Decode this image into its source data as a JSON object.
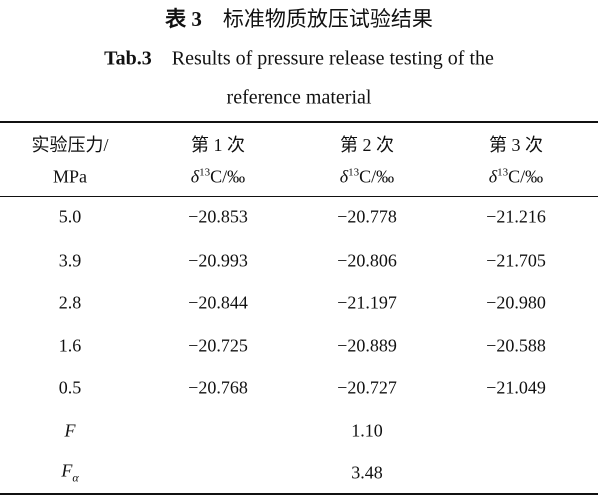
{
  "caption": {
    "label": "表 3",
    "title": "标准物质放压试验结果",
    "en_label": "Tab.3",
    "en_title_line1": "Results of pressure release testing of the",
    "en_title_line2": "reference material"
  },
  "table": {
    "header": [
      {
        "line1": "实验压力/",
        "line2": "MPa"
      },
      {
        "line1": "第 1 次",
        "symbol": "δ",
        "sup": "13",
        "rest": "C/‰"
      },
      {
        "line1": "第 2 次",
        "symbol": "δ",
        "sup": "13",
        "rest": "C/‰"
      },
      {
        "line1": "第 3 次",
        "symbol": "δ",
        "sup": "13",
        "rest": "C/‰"
      }
    ],
    "rows": [
      [
        "5.0",
        "−20.853",
        "−20.778",
        "−21.216"
      ],
      [
        "3.9",
        "−20.993",
        "−20.806",
        "−21.705"
      ],
      [
        "2.8",
        "−20.844",
        "−21.197",
        "−20.980"
      ],
      [
        "1.6",
        "−20.725",
        "−20.889",
        "−20.588"
      ],
      [
        "0.5",
        "−20.768",
        "−20.727",
        "−21.049"
      ]
    ],
    "stats": [
      {
        "label": "F",
        "value": "1.10"
      },
      {
        "label": "F",
        "sub": "α",
        "value": "3.48"
      }
    ]
  }
}
